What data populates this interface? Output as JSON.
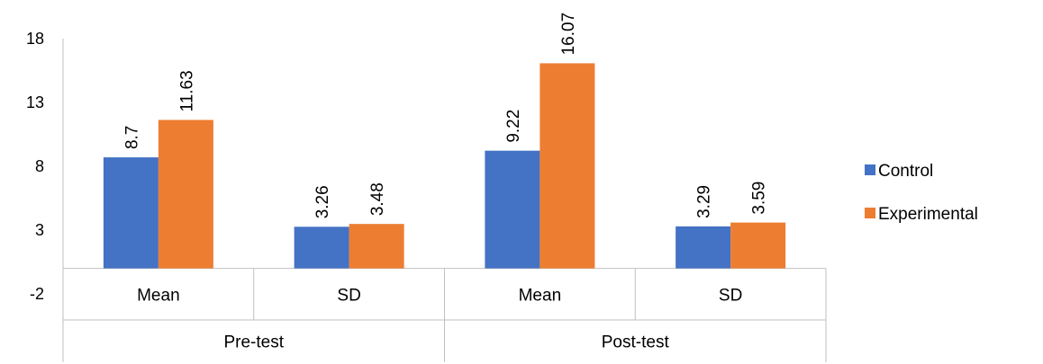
{
  "chart_data": {
    "type": "bar",
    "groups": [
      "Pre-test",
      "Post-test"
    ],
    "categories": [
      "Mean",
      "SD",
      "Mean",
      "SD"
    ],
    "series": [
      {
        "name": "Control",
        "color": "#4472C4",
        "values": [
          8.7,
          3.26,
          9.22,
          3.29
        ],
        "labels": [
          "8.7",
          "3.26",
          "9.22",
          "3.29"
        ]
      },
      {
        "name": "Experimental",
        "color": "#ED7D31",
        "values": [
          11.63,
          3.48,
          16.07,
          3.59
        ],
        "labels": [
          "11.63",
          "3.48",
          "16.07",
          "3.59"
        ]
      }
    ],
    "ylim": [
      -2,
      18
    ],
    "yticks": [
      "18",
      "13",
      "8",
      "3",
      "-2"
    ],
    "grid": false,
    "legend_position": "right"
  }
}
